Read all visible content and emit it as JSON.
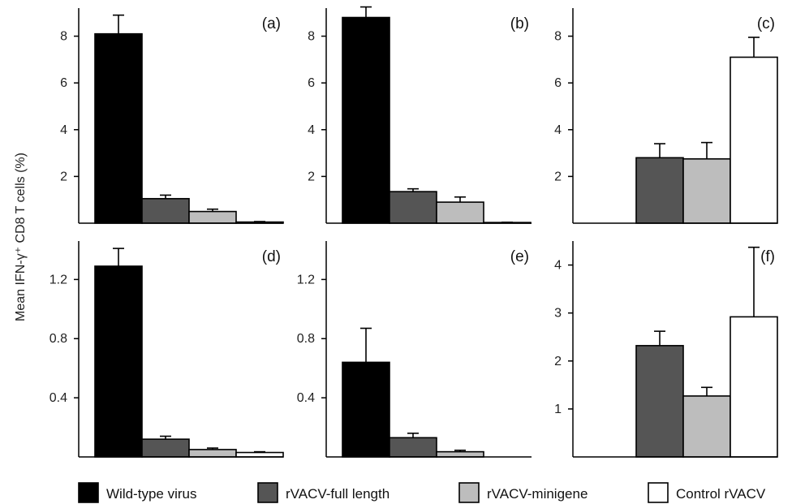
{
  "figure": {
    "ylabel": "Mean IFN-γ⁺ CD8 T cells (%)"
  },
  "legend": [
    {
      "name": "Wild-type virus",
      "color": "#000000"
    },
    {
      "name": "rVACV-full length",
      "color": "#555555"
    },
    {
      "name": "rVACV-minigene",
      "color": "#bdbdbd"
    },
    {
      "name": "Control rVACV",
      "color": "#ffffff"
    }
  ],
  "chart_data": [
    {
      "type": "bar",
      "panel": "(a)",
      "categories": [
        "Wild-type virus",
        "rVACV-full length",
        "rVACV-minigene",
        "Control rVACV"
      ],
      "values": [
        8.1,
        1.05,
        0.5,
        0.05
      ],
      "errors": [
        0.8,
        0.15,
        0.1,
        0.02
      ],
      "ylim": [
        0,
        9.2
      ],
      "yticks": [
        2,
        4,
        6,
        8
      ]
    },
    {
      "type": "bar",
      "panel": "(b)",
      "categories": [
        "Wild-type virus",
        "rVACV-full length",
        "rVACV-minigene",
        "Control rVACV"
      ],
      "values": [
        8.8,
        1.35,
        0.9,
        0.03
      ],
      "errors": [
        0.45,
        0.12,
        0.22,
        0.01
      ],
      "ylim": [
        0,
        9.2
      ],
      "yticks": [
        2,
        4,
        6,
        8
      ]
    },
    {
      "type": "bar",
      "panel": "(c)",
      "categories": [
        "Wild-type virus",
        "rVACV-full length",
        "rVACV-minigene",
        "Control rVACV"
      ],
      "values": [
        null,
        2.8,
        2.75,
        7.1
      ],
      "errors": [
        null,
        0.6,
        0.7,
        0.85
      ],
      "ylim": [
        0,
        9.2
      ],
      "yticks": [
        2,
        4,
        6,
        8
      ]
    },
    {
      "type": "bar",
      "panel": "(d)",
      "categories": [
        "Wild-type virus",
        "rVACV-full length",
        "rVACV-minigene",
        "Control rVACV"
      ],
      "values": [
        1.29,
        0.12,
        0.05,
        0.03
      ],
      "errors": [
        0.12,
        0.02,
        0.01,
        0.005
      ],
      "ylim": [
        0,
        1.46
      ],
      "yticks": [
        0.4,
        0.8,
        1.2
      ],
      "ytick_labels": [
        "0.4",
        "0.8",
        "1.2"
      ]
    },
    {
      "type": "bar",
      "panel": "(e)",
      "categories": [
        "Wild-type virus",
        "rVACV-full length",
        "rVACV-minigene",
        "Control rVACV"
      ],
      "values": [
        0.64,
        0.13,
        0.035,
        null
      ],
      "errors": [
        0.23,
        0.03,
        0.01,
        null
      ],
      "ylim": [
        0,
        1.46
      ],
      "yticks": [
        0.4,
        0.8,
        1.2
      ],
      "ytick_labels": [
        "0.4",
        "0.8",
        "1.2"
      ]
    },
    {
      "type": "bar",
      "panel": "(f)",
      "categories": [
        "Wild-type virus",
        "rVACV-full length",
        "rVACV-minigene",
        "Control rVACV"
      ],
      "values": [
        null,
        2.32,
        1.27,
        2.92
      ],
      "errors": [
        null,
        0.3,
        0.18,
        1.45
      ],
      "ylim": [
        0,
        4.5
      ],
      "yticks": [
        1,
        2,
        3,
        4
      ]
    }
  ]
}
